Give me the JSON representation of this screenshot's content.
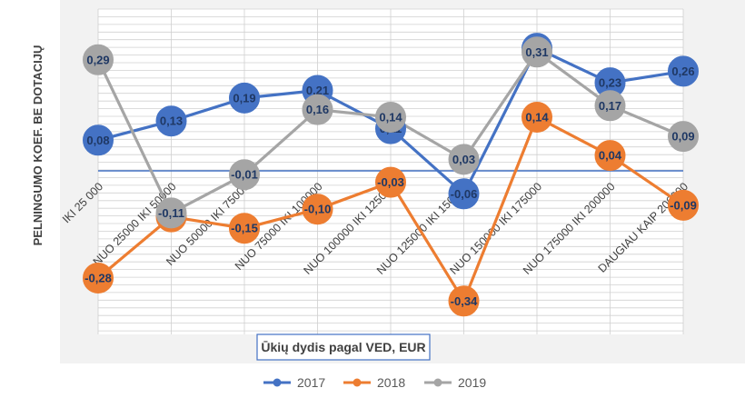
{
  "chart_data": {
    "type": "line",
    "xlabel": "Ūkių dydis pagal VED, EUR",
    "ylabel": "PELNINGUMO KOEF. BE DOTACIJŲ",
    "categories": [
      "IKI 25 000",
      "NUO 25000 IKI 50000",
      "NUO 50000 IKI 75000",
      "NUO 75000 IKI 100000",
      "NUO 100000 IKI 125000",
      "NUO 125000 IKI 150000",
      "NUO 150000 IKI 175000",
      "NUO 175000 IKI 200000",
      "DAUGIAU KAIP 200000"
    ],
    "ylim": [
      -0.45,
      0.35
    ],
    "grid": true,
    "legend_position": "bottom",
    "series": [
      {
        "name": "2017",
        "color": "#4472c4",
        "values": [
          0.08,
          0.13,
          0.19,
          0.21,
          0.11,
          -0.06,
          0.32,
          0.23,
          0.26
        ],
        "labels": [
          "0,08",
          "0,13",
          "0,19",
          "0,21",
          "0,11",
          "-0,06",
          "0,32",
          "0,23",
          "0,26"
        ]
      },
      {
        "name": "2018",
        "color": "#ed7d31",
        "values": [
          -0.28,
          -0.12,
          -0.15,
          -0.1,
          -0.03,
          -0.34,
          0.14,
          0.04,
          -0.09
        ],
        "labels": [
          "-0,28",
          "-0,12",
          "-0,15",
          "-0,10",
          "-0,03",
          "-0,34",
          "0,14",
          "0,04",
          "-0,09"
        ]
      },
      {
        "name": "2019",
        "color": "#a5a5a5",
        "values": [
          0.29,
          -0.11,
          -0.01,
          0.16,
          0.14,
          0.03,
          0.31,
          0.17,
          0.09
        ],
        "labels": [
          "0,29",
          "-0,11",
          "-0,01",
          "0,16",
          "0,14",
          "0,03",
          "0,31",
          "0,17",
          "0,09"
        ]
      }
    ]
  }
}
